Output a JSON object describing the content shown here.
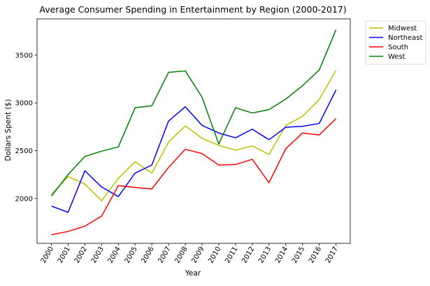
{
  "chart_data": {
    "type": "line",
    "title": "Average Consumer Spending in Entertainment by Region (2000-2017)",
    "xlabel": "Year",
    "ylabel": "Dollars Spent ($)",
    "x": [
      "2000",
      "2001",
      "2002",
      "2003",
      "2004",
      "2005",
      "2006",
      "2007",
      "2008",
      "2009",
      "2010",
      "2011",
      "2012",
      "2013",
      "2014",
      "2015",
      "2016",
      "2017"
    ],
    "ylim": [
      1530,
      3880
    ],
    "yticks": [
      "2000",
      "2500",
      "3000",
      "3500"
    ],
    "legend_position": "outside-upper-right",
    "grid": false,
    "series": [
      {
        "name": "Midwest",
        "color": "#bfbf00",
        "values": [
          2040,
          2230,
          2150,
          1975,
          2210,
          2385,
          2265,
          2590,
          2760,
          2630,
          2555,
          2505,
          2550,
          2460,
          2765,
          2860,
          3035,
          3340
        ]
      },
      {
        "name": "Northeast",
        "color": "#0000ff",
        "values": [
          1920,
          1855,
          2290,
          2120,
          2020,
          2265,
          2350,
          2810,
          2960,
          2765,
          2685,
          2635,
          2725,
          2615,
          2745,
          2755,
          2785,
          3135
        ]
      },
      {
        "name": "South",
        "color": "#ff0000",
        "values": [
          1620,
          1655,
          1710,
          1815,
          2135,
          2115,
          2100,
          2325,
          2515,
          2470,
          2350,
          2355,
          2410,
          2165,
          2520,
          2685,
          2665,
          2835
        ]
      },
      {
        "name": "West",
        "color": "#008000",
        "values": [
          2025,
          2250,
          2440,
          2495,
          2540,
          2950,
          2970,
          3320,
          3335,
          3060,
          2570,
          2950,
          2895,
          2930,
          3040,
          3180,
          3345,
          3765
        ]
      }
    ]
  }
}
